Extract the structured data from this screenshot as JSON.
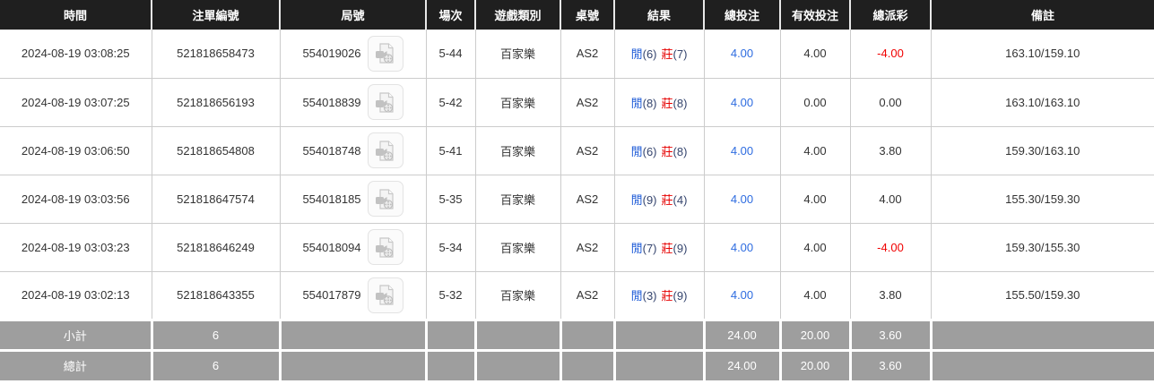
{
  "colors": {
    "header_bg": "#1f1f1f",
    "accent_blue": "#2e6ce0",
    "player_blue": "#1e5bd7",
    "banker_red": "#e60000",
    "negative_red": "#f00000",
    "footer_bg": "#9e9e9e"
  },
  "table": {
    "headers": [
      {
        "key": "time",
        "label": "時間"
      },
      {
        "key": "bet-id",
        "label": "注單編號"
      },
      {
        "key": "round-id",
        "label": "局號"
      },
      {
        "key": "session",
        "label": "場次"
      },
      {
        "key": "game-type",
        "label": "遊戲類別"
      },
      {
        "key": "table-id",
        "label": "桌號"
      },
      {
        "key": "result",
        "label": "結果"
      },
      {
        "key": "total-bet",
        "label": "總投注"
      },
      {
        "key": "valid-bet",
        "label": "有效投注"
      },
      {
        "key": "total-payout",
        "label": "總派彩"
      },
      {
        "key": "remark",
        "label": "備註"
      }
    ],
    "result_labels": {
      "player": "閒",
      "banker": "莊"
    },
    "video_icon": "video-replay-icon",
    "rows": [
      {
        "time": "2024-08-19 03:08:25",
        "bet_id": "521818658473",
        "round_id": "554019026",
        "session": "5-44",
        "game": "百家樂",
        "table_id": "AS2",
        "player_score": "(6)",
        "banker_score": "(7)",
        "total_bet": "4.00",
        "valid_bet": "4.00",
        "payout": "-4.00",
        "remark": "163.10/159.10"
      },
      {
        "time": "2024-08-19 03:07:25",
        "bet_id": "521818656193",
        "round_id": "554018839",
        "session": "5-42",
        "game": "百家樂",
        "table_id": "AS2",
        "player_score": "(8)",
        "banker_score": "(8)",
        "total_bet": "4.00",
        "valid_bet": "0.00",
        "payout": "0.00",
        "remark": "163.10/163.10"
      },
      {
        "time": "2024-08-19 03:06:50",
        "bet_id": "521818654808",
        "round_id": "554018748",
        "session": "5-41",
        "game": "百家樂",
        "table_id": "AS2",
        "player_score": "(6)",
        "banker_score": "(8)",
        "total_bet": "4.00",
        "valid_bet": "4.00",
        "payout": "3.80",
        "remark": "159.30/163.10"
      },
      {
        "time": "2024-08-19 03:03:56",
        "bet_id": "521818647574",
        "round_id": "554018185",
        "session": "5-35",
        "game": "百家樂",
        "table_id": "AS2",
        "player_score": "(9)",
        "banker_score": "(4)",
        "total_bet": "4.00",
        "valid_bet": "4.00",
        "payout": "4.00",
        "remark": "155.30/159.30"
      },
      {
        "time": "2024-08-19 03:03:23",
        "bet_id": "521818646249",
        "round_id": "554018094",
        "session": "5-34",
        "game": "百家樂",
        "table_id": "AS2",
        "player_score": "(7)",
        "banker_score": "(9)",
        "total_bet": "4.00",
        "valid_bet": "4.00",
        "payout": "-4.00",
        "remark": "159.30/155.30"
      },
      {
        "time": "2024-08-19 03:02:13",
        "bet_id": "521818643355",
        "round_id": "554017879",
        "session": "5-32",
        "game": "百家樂",
        "table_id": "AS2",
        "player_score": "(3)",
        "banker_score": "(9)",
        "total_bet": "4.00",
        "valid_bet": "4.00",
        "payout": "3.80",
        "remark": "155.50/159.30"
      }
    ],
    "footer": [
      {
        "label": "小計",
        "count": "6",
        "total_bet": "24.00",
        "valid_bet": "20.00",
        "payout": "3.60"
      },
      {
        "label": "總計",
        "count": "6",
        "total_bet": "24.00",
        "valid_bet": "20.00",
        "payout": "3.60"
      }
    ]
  }
}
